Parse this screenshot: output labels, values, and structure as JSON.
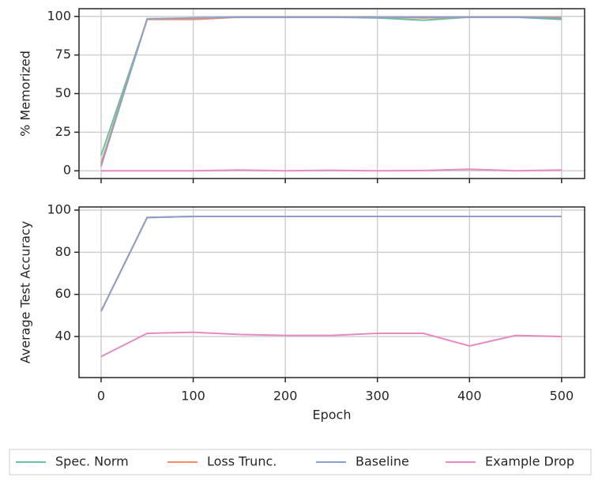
{
  "chart_data": [
    {
      "type": "line",
      "ylabel": "% Memorized",
      "x": [
        0,
        50,
        100,
        150,
        200,
        250,
        300,
        350,
        400,
        450,
        500
      ],
      "xlim": [
        -24,
        525
      ],
      "xticks": [
        0,
        100,
        200,
        300,
        400,
        500
      ],
      "ylim": [
        -5,
        105
      ],
      "yticks": [
        0,
        25,
        50,
        75,
        100
      ],
      "grid": true,
      "series": [
        {
          "name": "Spec. Norm",
          "color": "#66c2a5",
          "values": [
            10,
            98,
            99,
            99.5,
            99.5,
            99.5,
            99,
            97.5,
            99.5,
            99.5,
            98
          ]
        },
        {
          "name": "Loss Trunc.",
          "color": "#fc8d62",
          "values": [
            5,
            98,
            98,
            99.5,
            99.5,
            99.5,
            99.5,
            99,
            99.5,
            99.5,
            99.5
          ]
        },
        {
          "name": "Baseline",
          "color": "#8da0cb",
          "values": [
            3,
            98.5,
            99,
            99.5,
            99.5,
            99.5,
            99.5,
            99.5,
            99.5,
            99.5,
            99
          ]
        },
        {
          "name": "Example Drop",
          "color": "#e78ac3",
          "values": [
            0,
            0,
            0,
            0.5,
            0,
            0.3,
            0,
            0.2,
            1,
            0,
            0.5
          ]
        }
      ]
    },
    {
      "type": "line",
      "ylabel": "Average Test Accuracy",
      "xlabel": "Epoch",
      "x": [
        0,
        50,
        100,
        150,
        200,
        250,
        300,
        350,
        400,
        450,
        500
      ],
      "xlim": [
        -24,
        525
      ],
      "xticks": [
        0,
        100,
        200,
        300,
        400,
        500
      ],
      "ylim": [
        20.5,
        101.5
      ],
      "yticks": [
        40,
        60,
        80,
        100
      ],
      "grid": true,
      "series": [
        {
          "name": "Spec. Norm",
          "color": "#66c2a5",
          "values": [
            52,
            96.5,
            97,
            97,
            97,
            97,
            97,
            97,
            97,
            97,
            97
          ]
        },
        {
          "name": "Loss Trunc.",
          "color": "#fc8d62",
          "values": [
            52,
            96.5,
            97,
            97,
            97,
            97,
            97,
            97,
            97,
            97,
            97
          ]
        },
        {
          "name": "Baseline",
          "color": "#8da0cb",
          "values": [
            52,
            96.5,
            97,
            97,
            97,
            97,
            97,
            97,
            97,
            97,
            97
          ]
        },
        {
          "name": "Example Drop",
          "color": "#e78ac3",
          "values": [
            30.5,
            41.5,
            42,
            41,
            40.5,
            40.5,
            41.5,
            41.5,
            35.5,
            40.5,
            40
          ]
        }
      ]
    }
  ]
}
